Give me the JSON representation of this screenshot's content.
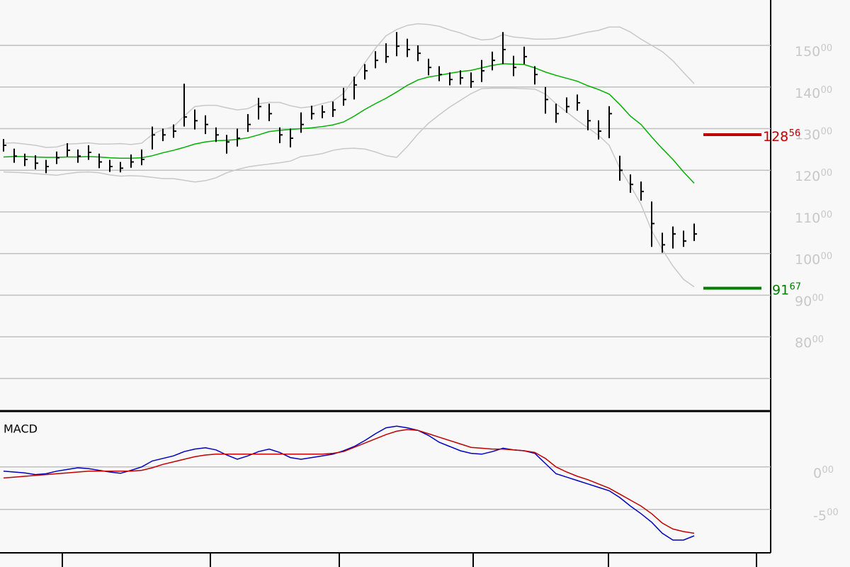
{
  "chart_data": [
    {
      "type": "ohlc",
      "high": [
        127.5,
        125.2,
        124,
        123.6,
        122.5,
        124.5,
        126.5,
        125,
        126,
        124,
        122.5,
        122,
        123.8,
        125,
        130.5,
        130,
        131,
        140.8,
        134.6,
        133.2,
        130.3,
        128.5,
        130,
        133.5,
        137.4,
        136,
        130.3,
        130,
        133.9,
        135.5,
        135.6,
        136.5,
        139.8,
        142.5,
        145.5,
        148.6,
        150.5,
        153.2,
        151.6,
        150,
        146.8,
        145,
        143.5,
        144,
        143.5,
        146.5,
        148.5,
        153.2,
        147.5,
        149.7,
        145,
        140,
        136,
        137.5,
        138.2,
        134.5,
        132,
        135.4,
        123.5,
        119,
        117.3,
        112.5,
        105,
        106.5,
        105.5,
        107.2
      ],
      "low": [
        124.5,
        121.8,
        121,
        120.2,
        119.3,
        121.5,
        123.3,
        121.8,
        122.5,
        120.5,
        119.6,
        119.5,
        120.6,
        121.2,
        125,
        127,
        127.8,
        130.5,
        129.8,
        128.7,
        126.8,
        124,
        125.7,
        129.2,
        132.2,
        131.8,
        126.5,
        125.5,
        129,
        132.2,
        132.5,
        132.8,
        135.5,
        137,
        141.8,
        144.5,
        145.8,
        147.4,
        147.2,
        146.2,
        142.8,
        141.4,
        140.4,
        140.6,
        139.8,
        141.2,
        144,
        145.5,
        142.6,
        145.5,
        140.6,
        133.6,
        131.4,
        133.8,
        134.3,
        129.6,
        127.4,
        127.7,
        117.5,
        114.6,
        112.7,
        101.6,
        100.2,
        101.2,
        101.6,
        103
      ],
      "close": [
        126,
        123.4,
        122.6,
        121.7,
        120.9,
        123,
        124.8,
        123.4,
        124.3,
        122,
        120.9,
        120.5,
        122,
        122.6,
        128.5,
        128.5,
        129.4,
        132.8,
        131.9,
        131,
        128.5,
        126.8,
        127.7,
        131,
        135.3,
        133.6,
        128.5,
        127.7,
        131,
        133.6,
        134,
        134.5,
        137,
        140.5,
        143.9,
        146.4,
        147.3,
        149.8,
        149,
        148.1,
        144.7,
        143,
        141.8,
        142.2,
        141.3,
        143.9,
        146.4,
        149,
        144.7,
        147.3,
        143,
        137,
        133.6,
        135.3,
        136.2,
        131.9,
        129.4,
        133.6,
        120,
        116.6,
        114.9,
        107.2,
        102.1,
        104.7,
        103,
        104.7
      ],
      "color": "#000000",
      "series": [
        {
          "color": "#00b000",
          "values": [
            123.2,
            123.3,
            123.3,
            123.2,
            123.1,
            123.1,
            123.2,
            123.2,
            123.3,
            123.2,
            123,
            122.9,
            122.9,
            123,
            123.5,
            124.2,
            124.8,
            125.5,
            126.3,
            126.8,
            127.1,
            127.2,
            127.4,
            127.8,
            128.5,
            129.3,
            129.6,
            129.8,
            130,
            130.2,
            130.5,
            130.9,
            131.6,
            133,
            134.6,
            136,
            137.3,
            138.8,
            140.4,
            141.7,
            142.4,
            142.8,
            143.3,
            143.7,
            144,
            144.6,
            145.2,
            145.6,
            145.5,
            145.4,
            144.6,
            143.6,
            142.8,
            142.1,
            141.4,
            140.3,
            139.4,
            138.3,
            135.8,
            133,
            131,
            128,
            125.2,
            122.6,
            119.6,
            116.9
          ]
        },
        {
          "color": "#c8c8c8",
          "values": [
            126.5,
            126.6,
            126.3,
            126,
            125.5,
            125.6,
            126.3,
            126.4,
            126.6,
            126.3,
            126.3,
            126.4,
            126.2,
            126.5,
            128.6,
            129.8,
            130.5,
            133,
            135.3,
            135.6,
            135.6,
            135,
            134.5,
            134.8,
            136,
            136.3,
            136.3,
            135.5,
            135,
            135.3,
            136,
            136.6,
            138.5,
            142,
            145.8,
            149.3,
            152.3,
            153.8,
            154.8,
            155.2,
            155,
            154.6,
            153.7,
            153,
            152,
            151.3,
            151.5,
            152.6,
            152,
            151.8,
            151.5,
            151.5,
            151.6,
            152,
            152.6,
            153.2,
            153.6,
            154.4,
            154.4,
            153.2,
            151.5,
            150,
            148.5,
            146.3,
            143.5,
            140.8
          ]
        },
        {
          "color": "#c8c8c8",
          "values": [
            119.6,
            119.5,
            119.4,
            119.2,
            119,
            118.8,
            119.2,
            119.5,
            119.6,
            119.4,
            118.9,
            118.6,
            118.7,
            118.6,
            118.3,
            118,
            118,
            117.6,
            117.2,
            117.5,
            118.2,
            119.4,
            120.2,
            120.8,
            121.2,
            121.5,
            121.8,
            122.2,
            123.3,
            123.6,
            124,
            124.8,
            125.2,
            125.3,
            125.1,
            124.4,
            123.5,
            123.1,
            125.7,
            128.7,
            131.3,
            133.3,
            135.2,
            136.8,
            138.4,
            139.6,
            139.7,
            139.7,
            139.7,
            139.6,
            139.5,
            138.3,
            136,
            134,
            132,
            130.2,
            128.4,
            126,
            120.5,
            116.3,
            111.8,
            105.5,
            101,
            97,
            93.8,
            92
          ]
        }
      ],
      "levels": [
        {
          "value": 128.56,
          "label": "128.56",
          "color": "#c00000"
        },
        {
          "value": 91.67,
          "label": "91.67",
          "color": "#008000"
        }
      ],
      "ylim": [
        62.5,
        160.9
      ],
      "yticks": [
        {
          "value": 70,
          "label": null
        },
        {
          "value": 80,
          "label": "80.00"
        },
        {
          "value": 90,
          "label": "90.00"
        },
        {
          "value": 100,
          "label": "100.00"
        },
        {
          "value": 110,
          "label": "110.00"
        },
        {
          "value": 120,
          "label": "120.00"
        },
        {
          "value": 130,
          "label": "130.00"
        },
        {
          "value": 140,
          "label": "140.00"
        },
        {
          "value": 150,
          "label": "150.00"
        }
      ],
      "grid": true
    },
    {
      "type": "line",
      "title": "MACD",
      "series": [
        {
          "color": "#0000c0",
          "values": [
            -0.5,
            -0.6,
            -0.7,
            -0.9,
            -0.8,
            -0.5,
            -0.3,
            -0.1,
            -0.2,
            -0.4,
            -0.6,
            -0.75,
            -0.4,
            0,
            0.7,
            1,
            1.3,
            1.8,
            2.1,
            2.25,
            2,
            1.4,
            0.9,
            1.3,
            1.8,
            2.1,
            1.7,
            1.1,
            0.9,
            1.1,
            1.3,
            1.5,
            1.9,
            2.4,
            3.1,
            3.9,
            4.6,
            4.8,
            4.6,
            4.3,
            3.7,
            2.9,
            2.4,
            1.9,
            1.6,
            1.5,
            1.8,
            2.2,
            2,
            1.9,
            1.6,
            0.4,
            -0.8,
            -1.2,
            -1.6,
            -2,
            -2.4,
            -2.8,
            -3.6,
            -4.6,
            -5.5,
            -6.5,
            -7.8,
            -8.6,
            -8.6,
            -8.1
          ]
        },
        {
          "color": "#c00000",
          "values": [
            -1.3,
            -1.2,
            -1.1,
            -1,
            -0.9,
            -0.8,
            -0.7,
            -0.6,
            -0.5,
            -0.5,
            -0.5,
            -0.5,
            -0.5,
            -0.4,
            -0.1,
            0.3,
            0.6,
            0.9,
            1.2,
            1.4,
            1.5,
            1.5,
            1.5,
            1.5,
            1.5,
            1.5,
            1.5,
            1.5,
            1.5,
            1.5,
            1.5,
            1.6,
            1.8,
            2.3,
            2.8,
            3.3,
            3.8,
            4.2,
            4.4,
            4.3,
            3.9,
            3.5,
            3.1,
            2.7,
            2.3,
            2.2,
            2.1,
            2.1,
            2,
            1.9,
            1.7,
            1,
            0,
            -0.6,
            -1.1,
            -1.5,
            -2,
            -2.5,
            -3.2,
            -3.9,
            -4.6,
            -5.5,
            -6.6,
            -7.3,
            -7.6,
            -7.8
          ]
        }
      ],
      "ylim": [
        -10.1,
        6.4
      ],
      "yticks": [
        {
          "value": 0,
          "label": "0.00"
        },
        {
          "value": -5,
          "label": "-5.00"
        }
      ],
      "grid": true
    }
  ]
}
